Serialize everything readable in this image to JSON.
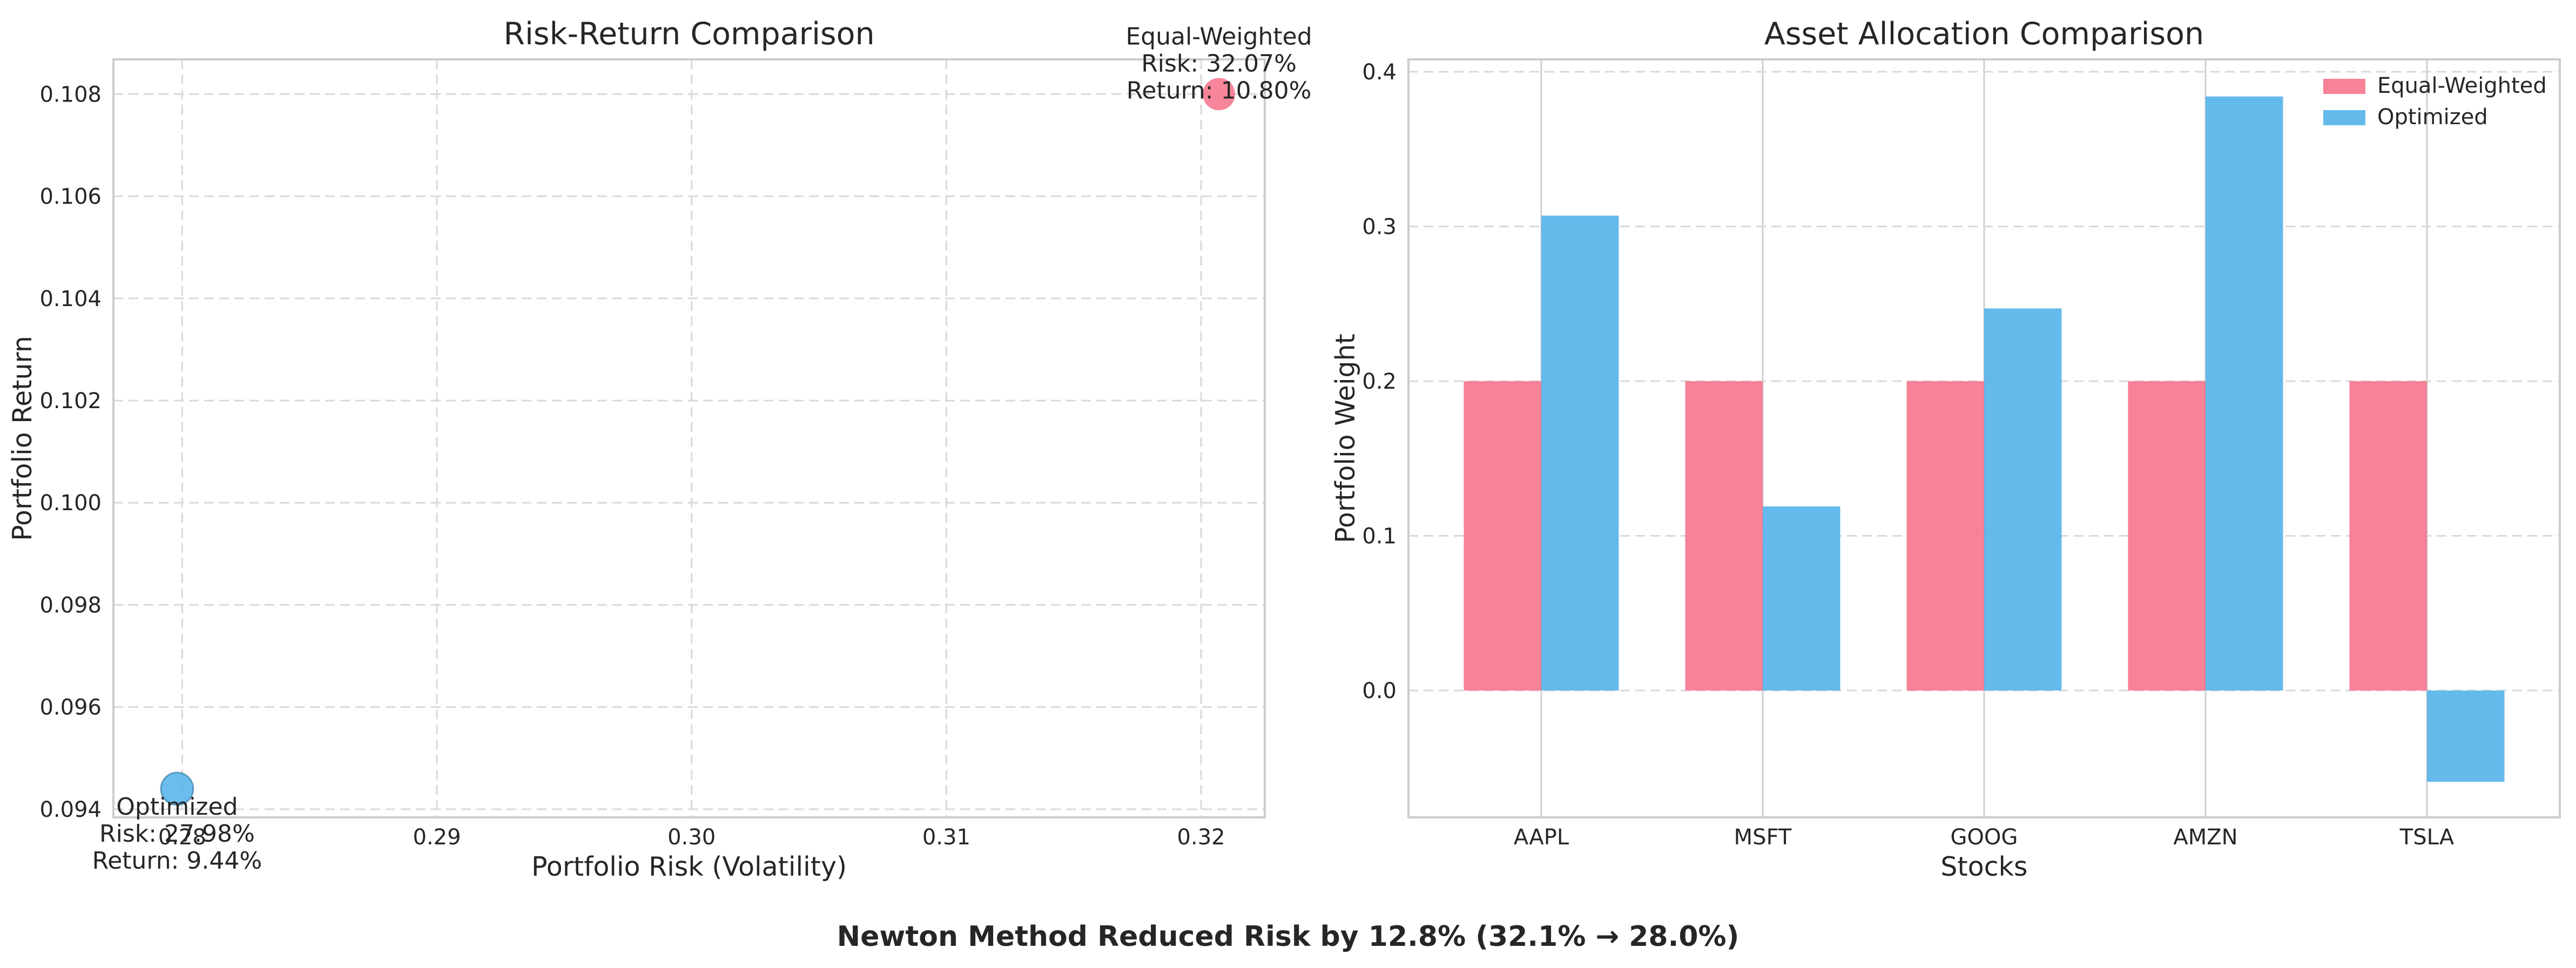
{
  "figure": {
    "suptitle": "Newton Method Reduced Risk by 12.8% (32.1% → 28.0%)"
  },
  "chart_data": [
    {
      "type": "scatter",
      "title": "Risk-Return Comparison",
      "xlabel": "Portfolio Risk (Volatility)",
      "ylabel": "Portfolio Return",
      "xlim": [
        0.2773,
        0.3225
      ],
      "ylim": [
        0.09384,
        0.10868
      ],
      "x_ticks": [
        0.28,
        0.29,
        0.3,
        0.31,
        0.32
      ],
      "x_tick_labels": [
        "0.28",
        "0.29",
        "0.30",
        "0.31",
        "0.32"
      ],
      "y_ticks": [
        0.094,
        0.096,
        0.098,
        0.1,
        0.102,
        0.104,
        0.106,
        0.108
      ],
      "y_tick_labels": [
        "0.094",
        "0.096",
        "0.098",
        "0.100",
        "0.102",
        "0.104",
        "0.106",
        "0.108"
      ],
      "grid": true,
      "points": [
        {
          "name": "Equal-Weighted",
          "x": 0.3207,
          "y": 0.108,
          "color": "#f77189",
          "annotation": [
            "Equal-Weighted",
            "Risk: 32.07%",
            "Return: 10.80%"
          ]
        },
        {
          "name": "Optimized",
          "x": 0.2798,
          "y": 0.0944,
          "color": "#50b1e9",
          "annotation": [
            "Optimized",
            "Risk: 27.98%",
            "Return: 9.44%"
          ]
        }
      ]
    },
    {
      "type": "bar",
      "title": "Asset Allocation Comparison",
      "xlabel": "Stocks",
      "ylabel": "Portfolio Weight",
      "categories": [
        "AAPL",
        "MSFT",
        "GOOG",
        "AMZN",
        "TSLA"
      ],
      "ylim": [
        -0.082,
        0.408
      ],
      "y_ticks": [
        0.0,
        0.1,
        0.2,
        0.3,
        0.4
      ],
      "y_tick_labels": [
        "0.0",
        "0.1",
        "0.2",
        "0.3",
        "0.4"
      ],
      "grid": true,
      "legend_position": "top-right",
      "series": [
        {
          "name": "Equal-Weighted",
          "color": "#f77189",
          "values": [
            0.2,
            0.2,
            0.2,
            0.2,
            0.2
          ]
        },
        {
          "name": "Optimized",
          "color": "#50b1e9",
          "values": [
            0.307,
            0.119,
            0.247,
            0.384,
            -0.059
          ]
        }
      ]
    }
  ]
}
